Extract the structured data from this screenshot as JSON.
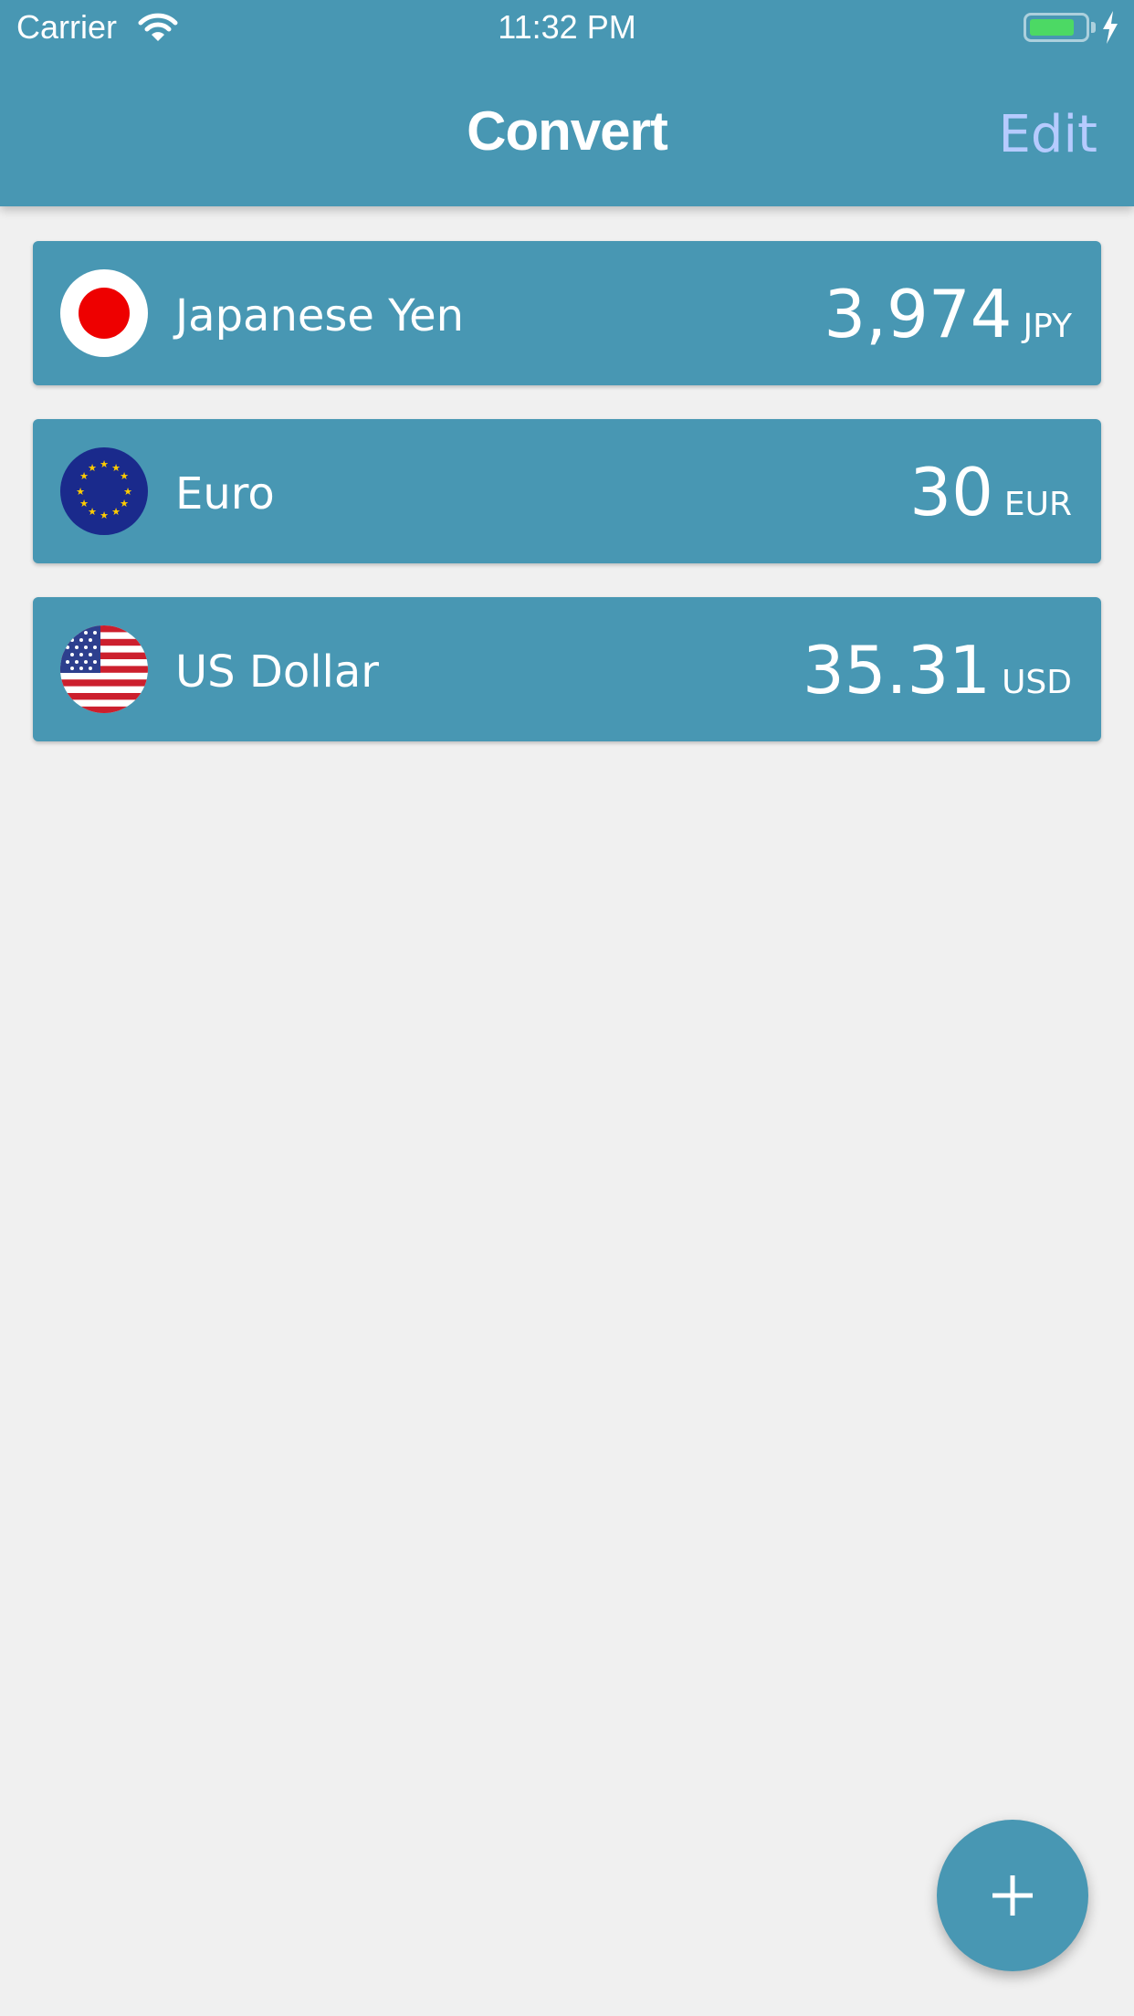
{
  "status_bar": {
    "carrier": "Carrier",
    "time": "11:32 PM",
    "wifi_icon": "wifi-icon",
    "battery_icon": "battery-icon",
    "charging_icon": "bolt-icon"
  },
  "nav": {
    "title": "Convert",
    "edit_label": "Edit"
  },
  "currencies": [
    {
      "name": "Japanese Yen",
      "amount": "3,974",
      "code": "JPY",
      "flag": "japan-flag-icon"
    },
    {
      "name": "Euro",
      "amount": "30",
      "code": "EUR",
      "flag": "eu-flag-icon"
    },
    {
      "name": "US Dollar",
      "amount": "35.31",
      "code": "USD",
      "flag": "us-flag-icon"
    }
  ],
  "fab": {
    "icon": "plus-icon"
  },
  "colors": {
    "primary": "#4897b3",
    "background": "#f0f0f0",
    "edit_text": "#b6cbff",
    "battery_fill": "#4cd964"
  }
}
